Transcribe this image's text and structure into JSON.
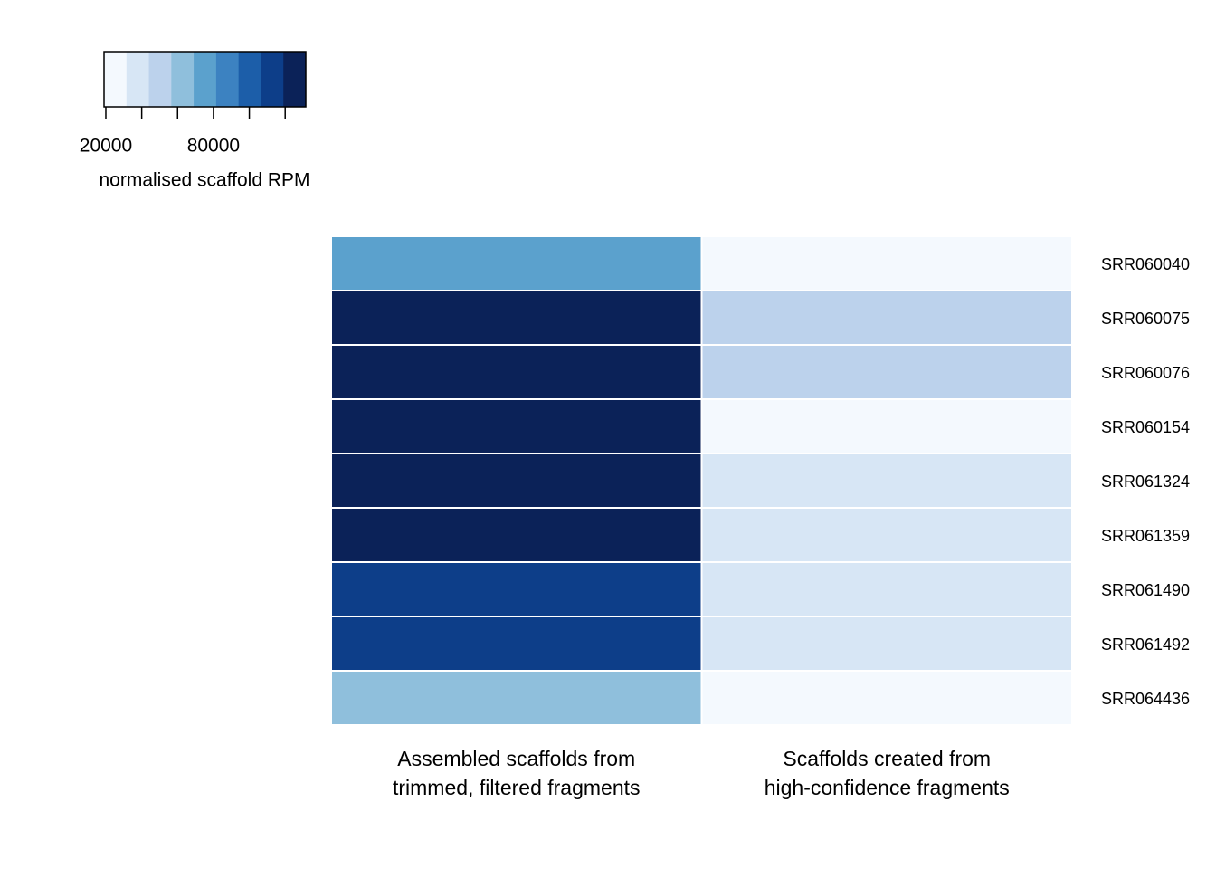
{
  "chart_data": {
    "type": "heatmap",
    "columns": [
      "Assembled scaffolds from\ntrimmed, filtered fragments",
      "Scaffolds created from\nhigh-confidence fragments"
    ],
    "rows": [
      "SRR060040",
      "SRR060075",
      "SRR060076",
      "SRR060154",
      "SRR061324",
      "SRR061359",
      "SRR061490",
      "SRR061492",
      "SRR064436"
    ],
    "values": [
      [
        75000,
        25000
      ],
      [
        125000,
        50000
      ],
      [
        125000,
        50000
      ],
      [
        125000,
        25000
      ],
      [
        125000,
        37000
      ],
      [
        125000,
        37000
      ],
      [
        112000,
        37000
      ],
      [
        112000,
        37000
      ],
      [
        62000,
        25000
      ]
    ],
    "colorbar": {
      "label": "normalised scaffold RPM",
      "colors": [
        "#f4f9fe",
        "#d7e6f5",
        "#bcd2ec",
        "#8fbfdc",
        "#5ba1cd",
        "#3c82c1",
        "#1c5ea9",
        "#0d3e89",
        "#0b2258"
      ],
      "xlim": [
        19000,
        131500
      ],
      "xticks": [
        20000,
        {
          "value": 40000,
          "label": null
        },
        {
          "value": 60000,
          "label": null
        },
        80000,
        {
          "value": 100000,
          "label": null
        },
        {
          "value": 120000,
          "label": null
        }
      ]
    }
  }
}
